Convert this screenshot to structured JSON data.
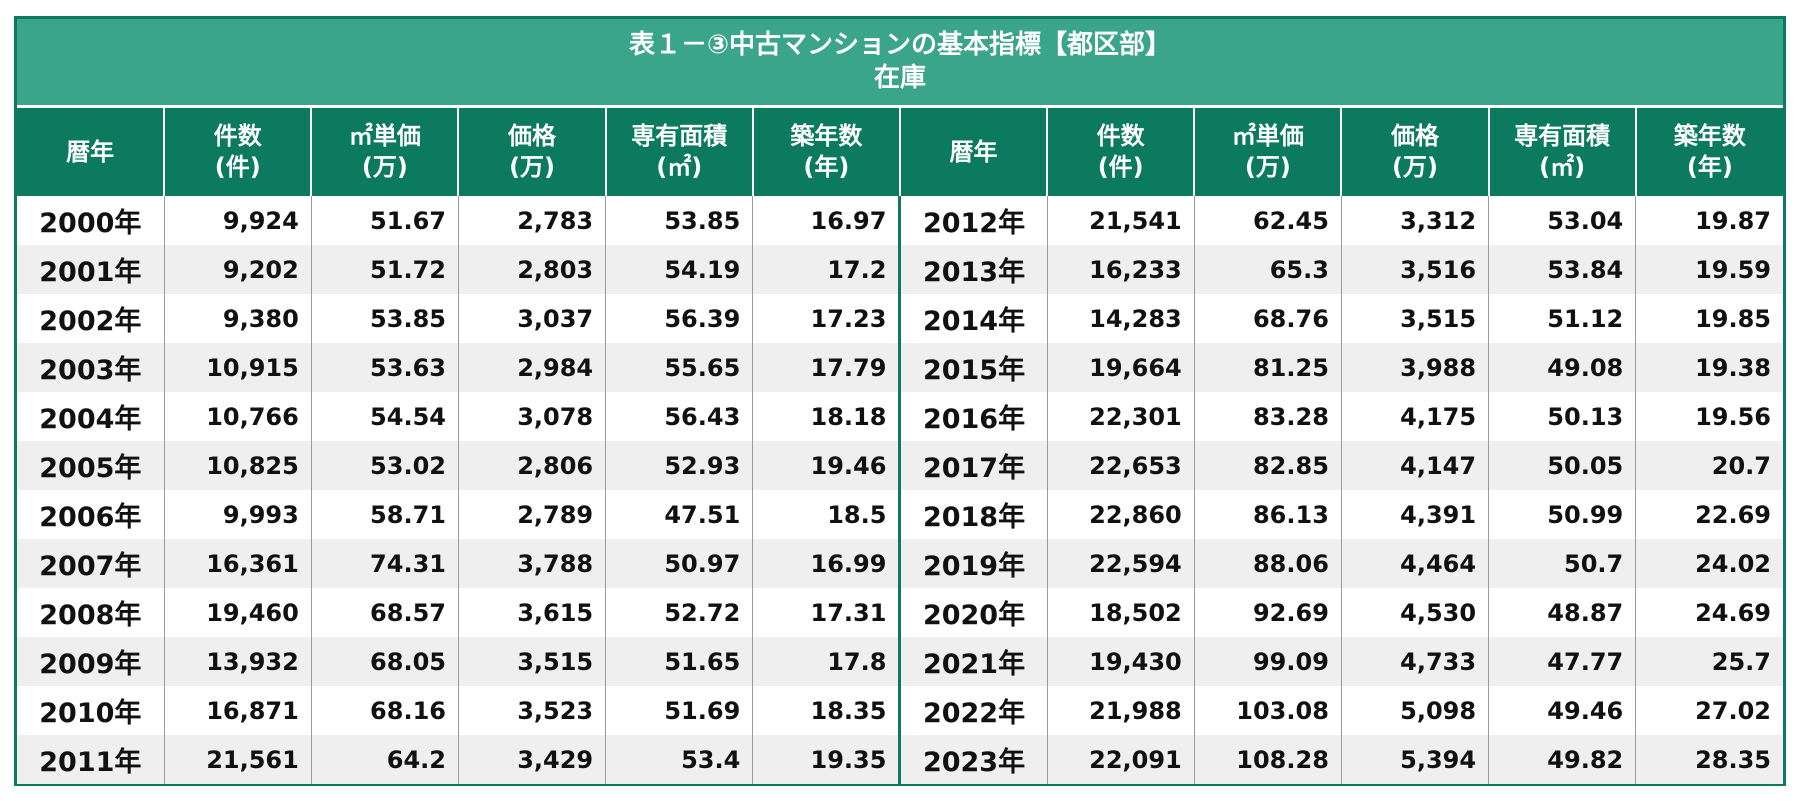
{
  "title": "表１－③中古マンションの基本指標【都区部】",
  "subtitle": "在庫",
  "headers": [
    {
      "l1": "暦年",
      "l2": ""
    },
    {
      "l1": "件数",
      "l2": "(件)"
    },
    {
      "l1": "㎡単価",
      "l2": "(万)"
    },
    {
      "l1": "価格",
      "l2": "(万)"
    },
    {
      "l1": "専有面積",
      "l2": "(㎡)"
    },
    {
      "l1": "築年数",
      "l2": "(年)"
    }
  ],
  "left_rows": [
    [
      "2000年",
      "9,924",
      "51.67",
      "2,783",
      "53.85",
      "16.97"
    ],
    [
      "2001年",
      "9,202",
      "51.72",
      "2,803",
      "54.19",
      "17.2"
    ],
    [
      "2002年",
      "9,380",
      "53.85",
      "3,037",
      "56.39",
      "17.23"
    ],
    [
      "2003年",
      "10,915",
      "53.63",
      "2,984",
      "55.65",
      "17.79"
    ],
    [
      "2004年",
      "10,766",
      "54.54",
      "3,078",
      "56.43",
      "18.18"
    ],
    [
      "2005年",
      "10,825",
      "53.02",
      "2,806",
      "52.93",
      "19.46"
    ],
    [
      "2006年",
      "9,993",
      "58.71",
      "2,789",
      "47.51",
      "18.5"
    ],
    [
      "2007年",
      "16,361",
      "74.31",
      "3,788",
      "50.97",
      "16.99"
    ],
    [
      "2008年",
      "19,460",
      "68.57",
      "3,615",
      "52.72",
      "17.31"
    ],
    [
      "2009年",
      "13,932",
      "68.05",
      "3,515",
      "51.65",
      "17.8"
    ],
    [
      "2010年",
      "16,871",
      "68.16",
      "3,523",
      "51.69",
      "18.35"
    ],
    [
      "2011年",
      "21,561",
      "64.2",
      "3,429",
      "53.4",
      "19.35"
    ]
  ],
  "right_rows": [
    [
      "2012年",
      "21,541",
      "62.45",
      "3,312",
      "53.04",
      "19.87"
    ],
    [
      "2013年",
      "16,233",
      "65.3",
      "3,516",
      "53.84",
      "19.59"
    ],
    [
      "2014年",
      "14,283",
      "68.76",
      "3,515",
      "51.12",
      "19.85"
    ],
    [
      "2015年",
      "19,664",
      "81.25",
      "3,988",
      "49.08",
      "19.38"
    ],
    [
      "2016年",
      "22,301",
      "83.28",
      "4,175",
      "50.13",
      "19.56"
    ],
    [
      "2017年",
      "22,653",
      "82.85",
      "4,147",
      "50.05",
      "20.7"
    ],
    [
      "2018年",
      "22,860",
      "86.13",
      "4,391",
      "50.99",
      "22.69"
    ],
    [
      "2019年",
      "22,594",
      "88.06",
      "4,464",
      "50.7",
      "24.02"
    ],
    [
      "2020年",
      "18,502",
      "92.69",
      "4,530",
      "48.87",
      "24.69"
    ],
    [
      "2021年",
      "19,430",
      "99.09",
      "4,733",
      "47.77",
      "25.7"
    ],
    [
      "2022年",
      "21,988",
      "103.08",
      "5,098",
      "49.46",
      "27.02"
    ],
    [
      "2023年",
      "22,091",
      "108.28",
      "5,394",
      "49.82",
      "28.35"
    ]
  ]
}
